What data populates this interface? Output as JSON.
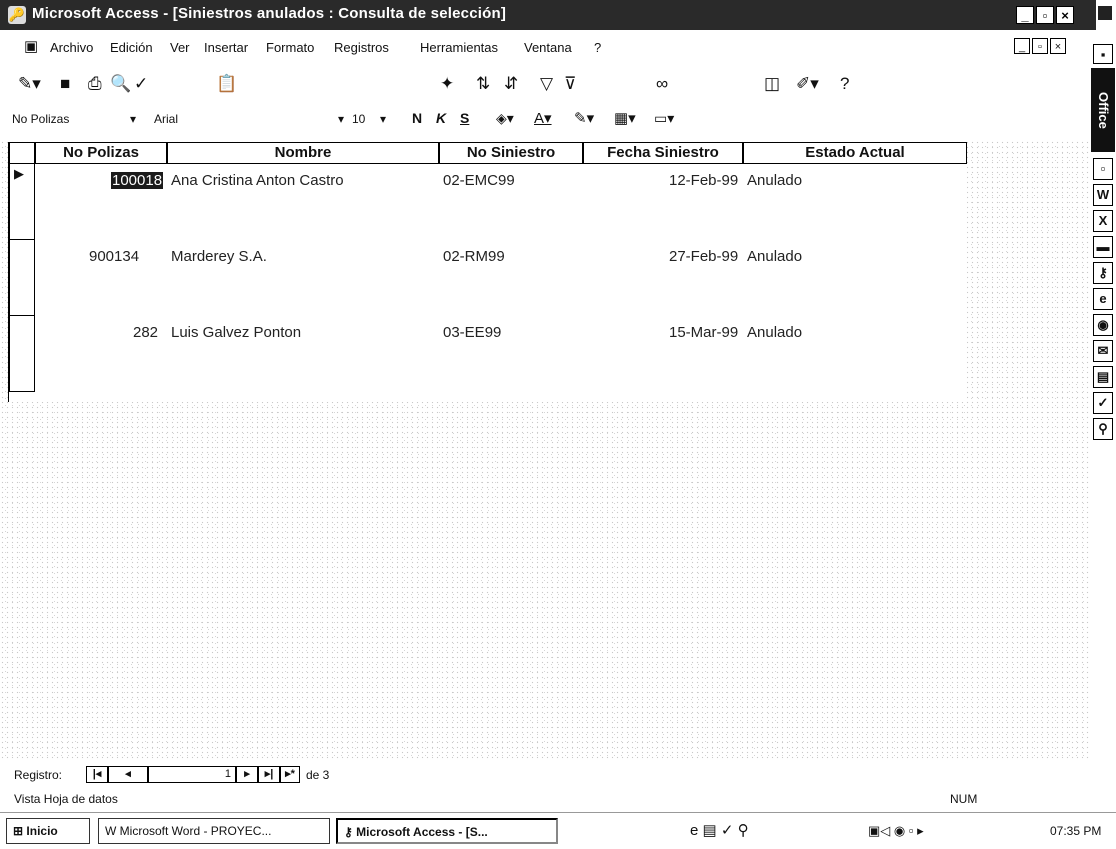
{
  "window": {
    "title": "Microsoft Access - [Siniestros anulados : Consulta de selección]",
    "min": "_",
    "max": "▫",
    "close": "×"
  },
  "menu": {
    "items": [
      "Archivo",
      "Edición",
      "Ver",
      "Insertar",
      "Formato",
      "Registros",
      "Herramientas",
      "Ventana",
      "?"
    ]
  },
  "format_bar": {
    "field": "No Polizas",
    "font": "Arial",
    "size": "10"
  },
  "table": {
    "headers": [
      "No Polizas",
      "Nombre",
      "No Siniestro",
      "Fecha Siniestro",
      "Estado Actual"
    ],
    "rows": [
      {
        "poliza": "100018",
        "nombre": "Ana Cristina Anton Castro",
        "siniestro": "02-EMC99",
        "fecha": "12-Feb-99",
        "estado": "Anulado"
      },
      {
        "poliza": "900134",
        "nombre": "Marderey S.A.",
        "siniestro": "02-RM99",
        "fecha": "27-Feb-99",
        "estado": "Anulado"
      },
      {
        "poliza": "282",
        "nombre": "Luis Galvez Ponton",
        "siniestro": "03-EE99",
        "fecha": "15-Mar-99",
        "estado": "Anulado"
      }
    ]
  },
  "navigation": {
    "label": "Registro:",
    "current": "1",
    "of": "de 3"
  },
  "status": {
    "left": "Vista Hoja de datos",
    "num": "NUM"
  },
  "office_bar": {
    "label": "Office"
  },
  "taskbar": {
    "start": "Inicio",
    "tasks": [
      "Microsoft Word - PROYEC...",
      "Microsoft Access - [S..."
    ],
    "clock": "07:35 PM"
  }
}
